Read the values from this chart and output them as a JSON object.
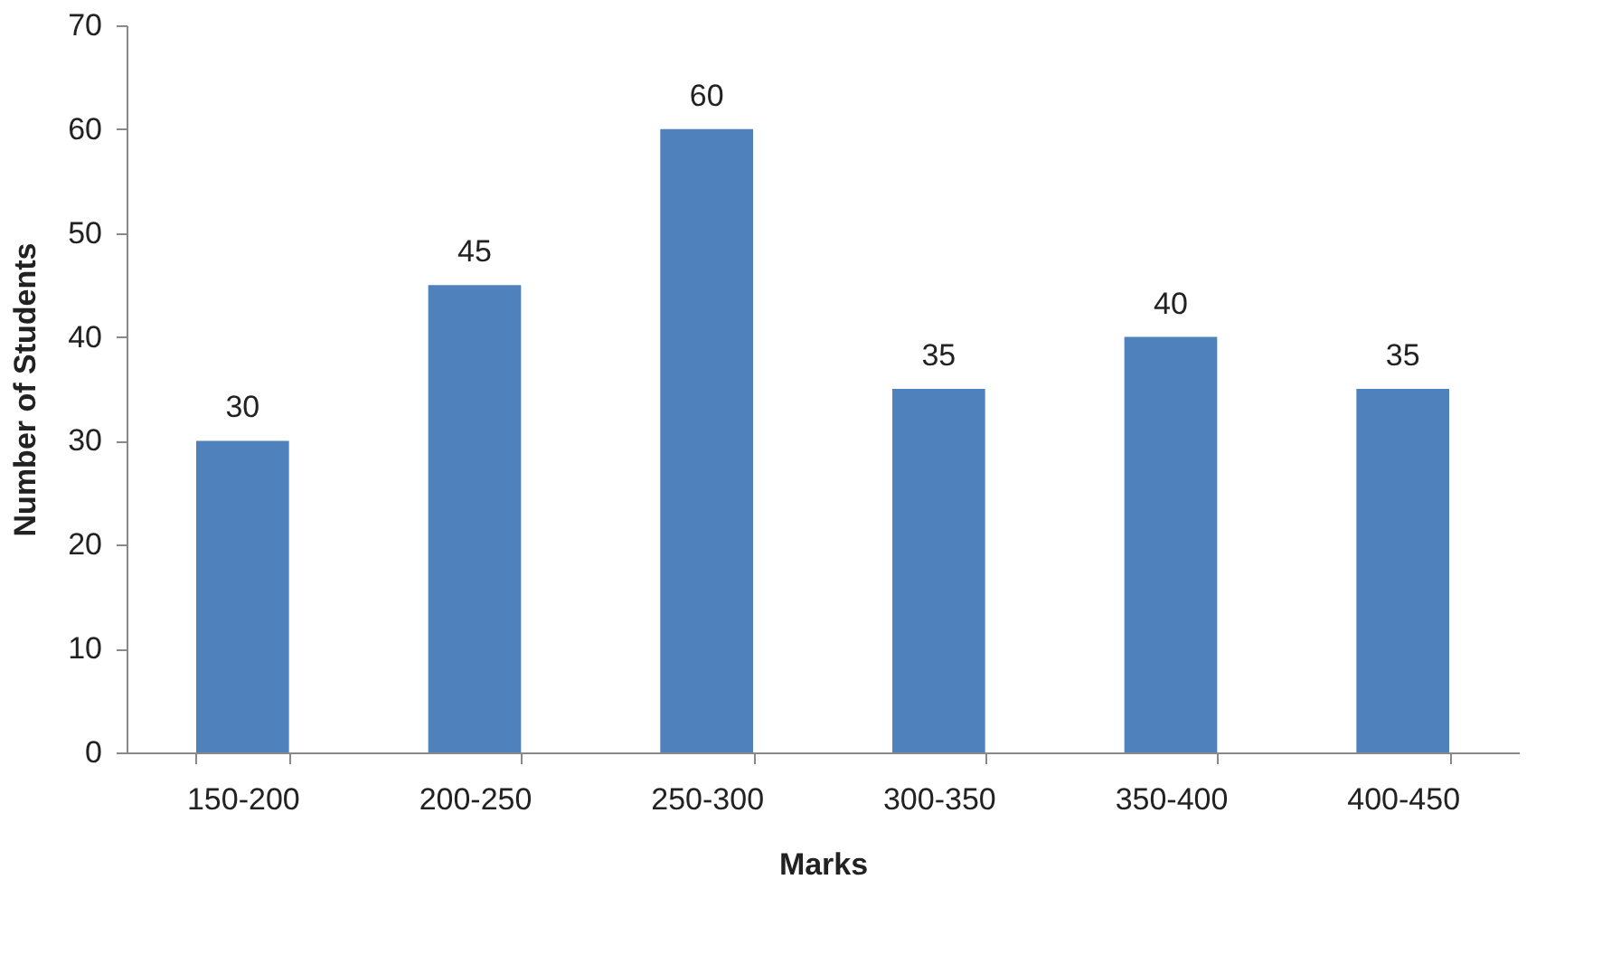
{
  "chart_data": {
    "type": "bar",
    "xlabel": "Marks",
    "ylabel": "Number of Students",
    "categories": [
      "150-200",
      "200-250",
      "250-300",
      "300-350",
      "350-400",
      "400-450"
    ],
    "values": [
      30,
      45,
      60,
      35,
      40,
      35
    ],
    "color": "#4f81bd",
    "ylim": [
      0,
      70
    ],
    "yticks": [
      0,
      10,
      20,
      30,
      40,
      50,
      60,
      70
    ],
    "data_labels": true
  }
}
